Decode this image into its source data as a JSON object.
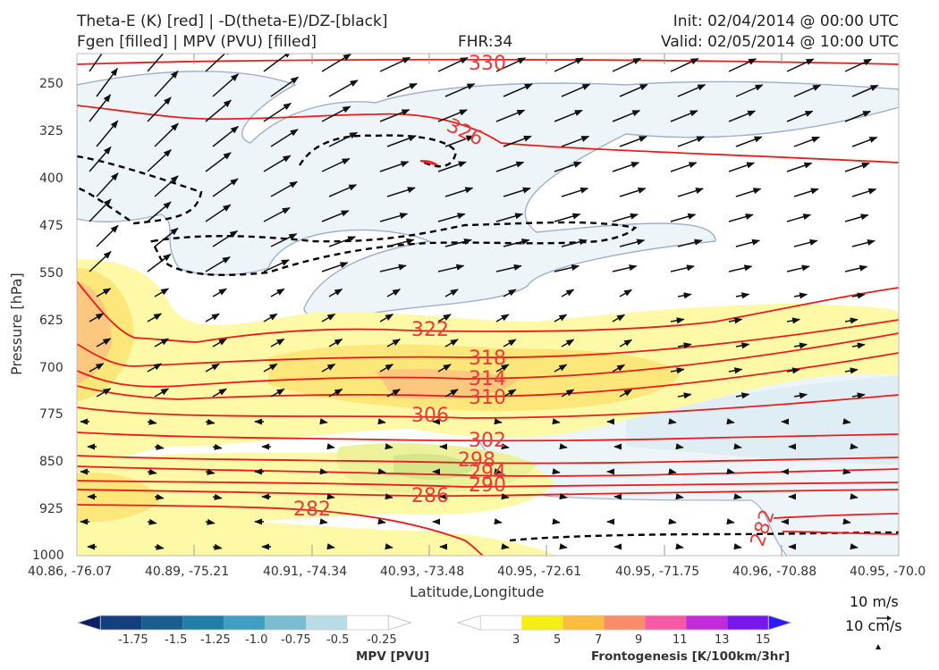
{
  "header": {
    "title_line1": "Theta-E (K) [red] | -D(theta-E)/DZ-[black]",
    "title_line2": "Fgen [filled] | MPV (PVU) [filled]",
    "fhr": "FHR:34",
    "init": "Init: 02/04/2014 @ 00:00 UTC",
    "valid": "Valid: 02/05/2014 @ 10:00 UTC"
  },
  "chart_data": {
    "type": "cross-section",
    "xlabel": "Latitude,Longitude",
    "ylabel": "Pressure [hPa]",
    "x_ticks": [
      "40.86, -76.07",
      "40.89, -75.21",
      "40.91, -74.34",
      "40.93, -73.48",
      "40.95, -72.61",
      "40.95, -71.75",
      "40.96, -70.88",
      "40.95, -70.0"
    ],
    "y_ticks": [
      250,
      325,
      400,
      475,
      550,
      625,
      700,
      775,
      850,
      925,
      1000
    ],
    "ylim": [
      1000,
      200
    ],
    "theta_e_contour_labels": [
      330,
      326,
      322,
      318,
      314,
      310,
      306,
      302,
      298,
      294,
      290,
      286,
      282,
      282
    ],
    "vector_legend": [
      "10 m/s",
      "10 cm/s"
    ],
    "colorbars": [
      {
        "name": "MPV [PVU]",
        "ticks": [
          "-1.75",
          "-1.5",
          "-1.25",
          "-1.0",
          "-0.75",
          "-0.5",
          "-0.25"
        ],
        "colors": [
          "#0b1f66",
          "#143f7e",
          "#1b5e8e",
          "#217fa6",
          "#3f9ec1",
          "#7bbcd3",
          "#b9dde6",
          "#ffffff"
        ]
      },
      {
        "name": "Frontogenesis [K/100km/3hr]",
        "ticks": [
          "3",
          "5",
          "7",
          "9",
          "11",
          "13",
          "15"
        ],
        "colors": [
          "#ffffff",
          "#f6ee17",
          "#fbbd3e",
          "#f98c6b",
          "#f75aa5",
          "#c12bd8",
          "#7a17ee",
          "#2a1bf8"
        ]
      }
    ]
  }
}
